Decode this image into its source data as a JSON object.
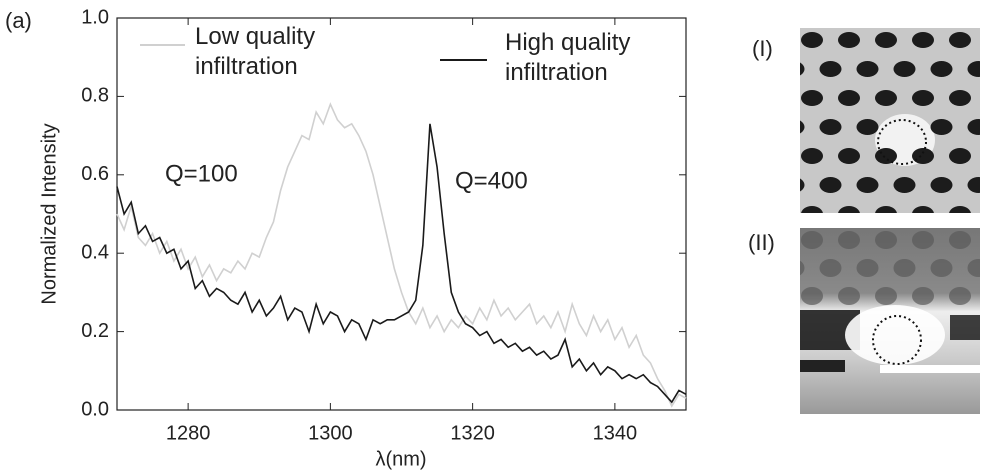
{
  "chart_data": {
    "type": "line",
    "panel_label": "(a)",
    "xlabel": "λ(nm)",
    "ylabel": "Normalized Intensity",
    "annotations": [
      "Q=100",
      "Q=400"
    ],
    "x": [
      1270,
      1271,
      1272,
      1273,
      1274,
      1275,
      1276,
      1277,
      1278,
      1279,
      1280,
      1281,
      1282,
      1283,
      1284,
      1285,
      1286,
      1287,
      1288,
      1289,
      1290,
      1291,
      1292,
      1293,
      1294,
      1295,
      1296,
      1297,
      1298,
      1299,
      1300,
      1301,
      1302,
      1303,
      1304,
      1305,
      1306,
      1307,
      1308,
      1309,
      1310,
      1311,
      1312,
      1313,
      1314,
      1315,
      1316,
      1317,
      1318,
      1319,
      1320,
      1321,
      1322,
      1323,
      1324,
      1325,
      1326,
      1327,
      1328,
      1329,
      1330,
      1331,
      1332,
      1333,
      1334,
      1335,
      1336,
      1337,
      1338,
      1339,
      1340,
      1341,
      1342,
      1343,
      1344,
      1345,
      1346,
      1347,
      1348,
      1349,
      1350
    ],
    "series": [
      {
        "name": "Low quality infiltration",
        "color": "#d0d0d0",
        "values": [
          0.5,
          0.46,
          0.52,
          0.44,
          0.42,
          0.45,
          0.4,
          0.43,
          0.38,
          0.41,
          0.36,
          0.39,
          0.34,
          0.37,
          0.33,
          0.36,
          0.35,
          0.38,
          0.36,
          0.4,
          0.39,
          0.44,
          0.48,
          0.56,
          0.62,
          0.66,
          0.7,
          0.69,
          0.76,
          0.73,
          0.78,
          0.74,
          0.72,
          0.73,
          0.7,
          0.66,
          0.6,
          0.52,
          0.44,
          0.36,
          0.3,
          0.25,
          0.22,
          0.26,
          0.21,
          0.24,
          0.2,
          0.23,
          0.21,
          0.24,
          0.22,
          0.26,
          0.23,
          0.28,
          0.24,
          0.26,
          0.23,
          0.25,
          0.27,
          0.22,
          0.24,
          0.21,
          0.25,
          0.2,
          0.27,
          0.22,
          0.19,
          0.24,
          0.2,
          0.23,
          0.18,
          0.21,
          0.16,
          0.19,
          0.14,
          0.12,
          0.08,
          0.05,
          0.01,
          0.04,
          0.03
        ]
      },
      {
        "name": "High quality infiltration",
        "color": "#1a1a1a",
        "values": [
          0.57,
          0.5,
          0.53,
          0.45,
          0.47,
          0.43,
          0.44,
          0.4,
          0.41,
          0.36,
          0.38,
          0.31,
          0.33,
          0.29,
          0.31,
          0.3,
          0.28,
          0.27,
          0.3,
          0.25,
          0.28,
          0.24,
          0.26,
          0.29,
          0.23,
          0.26,
          0.25,
          0.2,
          0.27,
          0.22,
          0.25,
          0.24,
          0.2,
          0.23,
          0.22,
          0.18,
          0.23,
          0.22,
          0.23,
          0.23,
          0.24,
          0.25,
          0.28,
          0.42,
          0.73,
          0.62,
          0.45,
          0.3,
          0.25,
          0.22,
          0.21,
          0.19,
          0.2,
          0.17,
          0.18,
          0.16,
          0.17,
          0.15,
          0.16,
          0.14,
          0.15,
          0.13,
          0.14,
          0.18,
          0.11,
          0.13,
          0.1,
          0.12,
          0.09,
          0.11,
          0.1,
          0.08,
          0.09,
          0.08,
          0.09,
          0.07,
          0.06,
          0.04,
          0.02,
          0.05,
          0.04
        ]
      }
    ],
    "xlim": [
      1270,
      1350
    ],
    "xticks": [
      1280,
      1300,
      1320,
      1340
    ],
    "ylim": [
      0,
      1
    ],
    "yticks": [
      {
        "value": 0,
        "label": "0.0"
      },
      {
        "value": 0.2,
        "label": "0.2"
      },
      {
        "value": 0.4,
        "label": "0.4"
      },
      {
        "value": 0.6,
        "label": "0.6"
      },
      {
        "value": 0.8,
        "label": "0.8"
      },
      {
        "value": 1,
        "label": "1.0"
      }
    ],
    "grid": false
  },
  "panels": [
    {
      "label": "(I)"
    },
    {
      "label": "(II)"
    }
  ]
}
